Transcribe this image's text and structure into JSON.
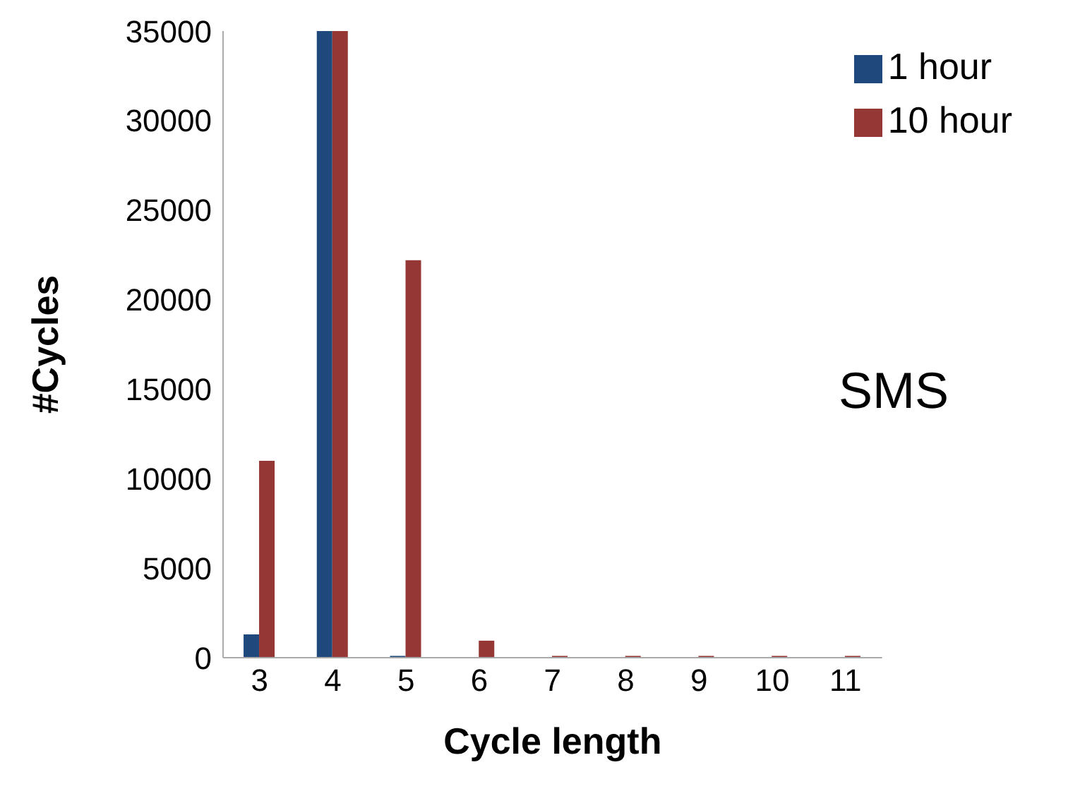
{
  "chart_data": {
    "type": "bar",
    "xlabel": "Cycle length",
    "ylabel": "#Cycles",
    "categories": [
      "3",
      "4",
      "5",
      "6",
      "7",
      "8",
      "9",
      "10",
      "11"
    ],
    "series": [
      {
        "name": "1 hour",
        "color": "#1f497d",
        "values": [
          1300,
          35000,
          100,
          0,
          0,
          0,
          0,
          0,
          0
        ]
      },
      {
        "name": "10 hour",
        "color": "#953735",
        "values": [
          11000,
          35000,
          22200,
          950,
          100,
          100,
          100,
          100,
          100
        ]
      }
    ],
    "ylim": [
      0,
      35000
    ],
    "yticks": [
      0,
      5000,
      10000,
      15000,
      20000,
      25000,
      30000,
      35000
    ],
    "grid": false,
    "legend": "top right",
    "annotations": [
      "SMS"
    ]
  }
}
